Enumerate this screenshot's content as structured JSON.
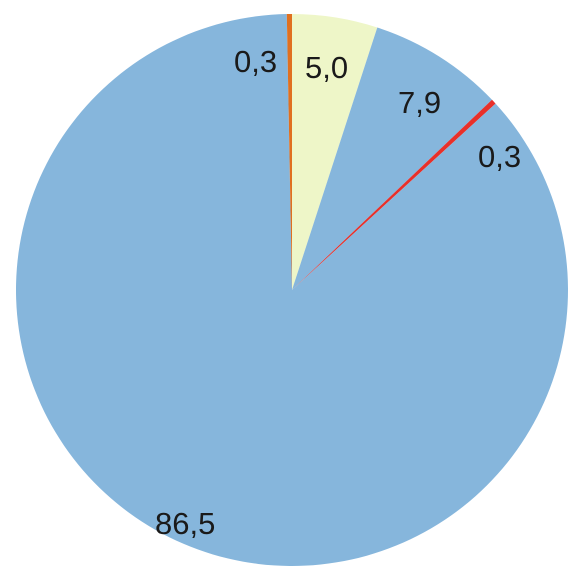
{
  "chart_data": {
    "type": "pie",
    "start_angle_deg": 0,
    "direction": "clockwise",
    "slices": [
      {
        "label": "5,0",
        "value": 5.0,
        "color": "#eef6c8"
      },
      {
        "label": "7,9",
        "value": 7.9,
        "color": "#86b6dc"
      },
      {
        "label": "0,3",
        "value": 0.3,
        "color": "#e8302a"
      },
      {
        "label": "86,5",
        "value": 86.5,
        "color": "#86b6dc"
      },
      {
        "label": "0,3",
        "value": 0.3,
        "color": "#e07020"
      }
    ],
    "title": "",
    "legend": "none"
  }
}
